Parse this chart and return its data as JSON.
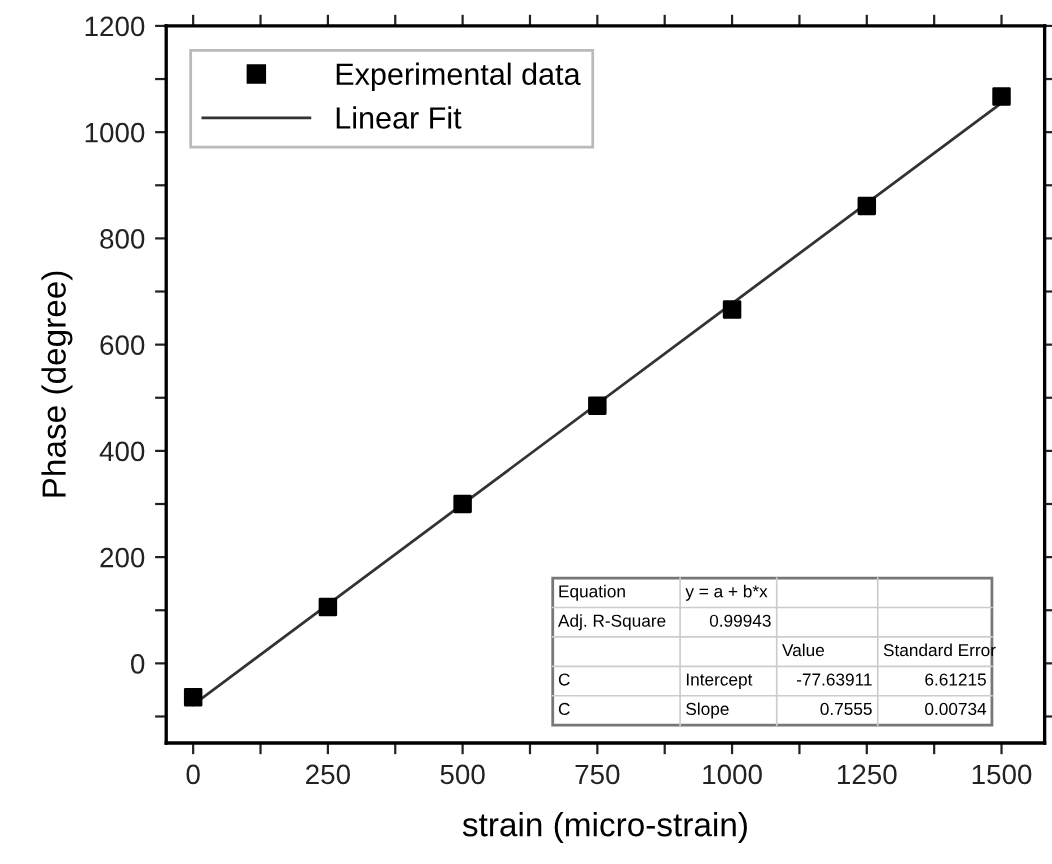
{
  "chart_data": {
    "type": "scatter",
    "xlabel": "strain (micro-strain)",
    "ylabel": "Phase (degree)",
    "x": [
      0,
      250,
      500,
      750,
      1000,
      1250,
      1500
    ],
    "series": [
      {
        "name": "Experimental data",
        "color": "#000000",
        "marker": "square",
        "values": [
          -64,
          106,
          300,
          485,
          666,
          861,
          1067
        ]
      },
      {
        "name": "Linear Fit",
        "type": "line",
        "color": "#333333",
        "line_style": "solid",
        "marker": "none",
        "x": [
          0,
          1500
        ],
        "values": [
          -78,
          1055
        ]
      }
    ],
    "xlim": [
      -50,
      1580
    ],
    "ylim": [
      -150,
      1200
    ],
    "xticks": [
      0,
      {
        "value": 125,
        "label": null
      },
      250,
      {
        "value": 375,
        "label": null
      },
      500,
      {
        "value": 625,
        "label": null
      },
      750,
      {
        "value": 875,
        "label": null
      },
      1000,
      {
        "value": 1125,
        "label": null
      },
      1250,
      {
        "value": 1375,
        "label": null
      },
      1500
    ],
    "yticks": [
      {
        "value": -100,
        "label": null
      },
      0,
      {
        "value": 100,
        "label": null
      },
      200,
      {
        "value": 300,
        "label": null
      },
      400,
      {
        "value": 500,
        "label": null
      },
      600,
      {
        "value": 700,
        "label": null
      },
      800,
      {
        "value": 900,
        "label": null
      },
      1000,
      {
        "value": 1100,
        "label": null
      },
      1200
    ],
    "legend": "top left",
    "grid": false,
    "annotations": [
      "Equation",
      "y = a + b*x",
      "Adj. R-Square",
      "0.99943",
      "Value",
      "Standard Error",
      "C",
      "Intercept",
      "-77.63911",
      "6.61215",
      "C",
      "Slope",
      "0.7555",
      "0.00734"
    ]
  }
}
